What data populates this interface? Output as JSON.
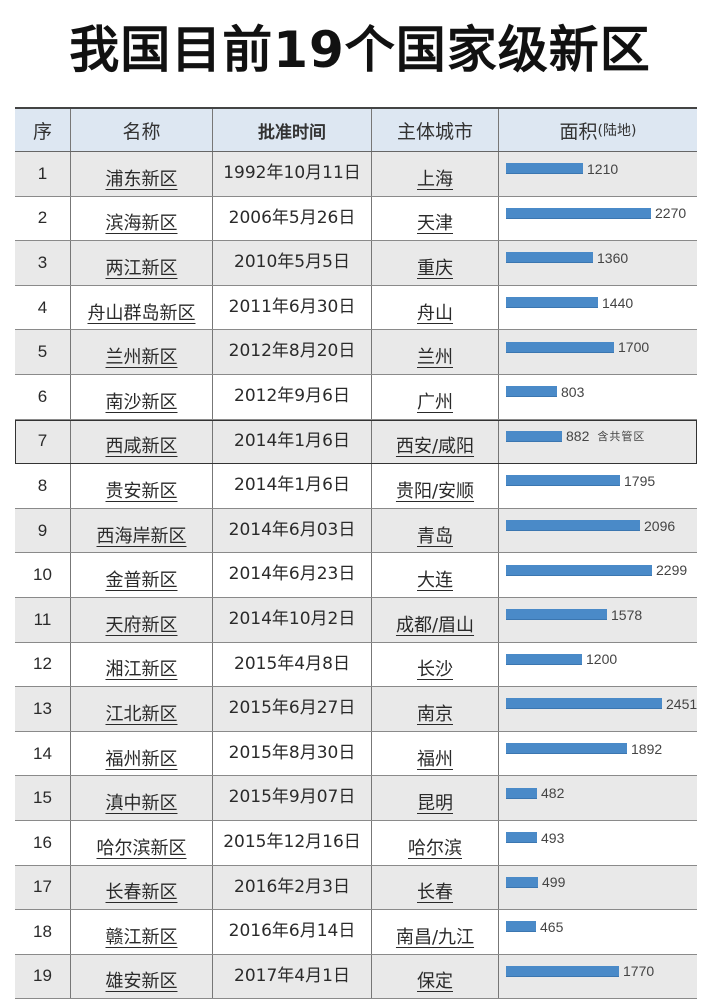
{
  "title": "我国目前19个国家级新区",
  "table": {
    "headers": {
      "index": "序",
      "name": "名称",
      "date": "批准时间",
      "city": "主体城市",
      "area": "面积",
      "area_unit": "(陆地)"
    },
    "bar_color": "#4a8ac8",
    "rows": [
      {
        "index": "1",
        "name": "浦东新区",
        "date": "1992年10月11日",
        "city": "上海",
        "area": "1210",
        "note": ""
      },
      {
        "index": "2",
        "name": "滨海新区",
        "date": "2006年5月26日",
        "city": "天津",
        "area": "2270",
        "note": ""
      },
      {
        "index": "3",
        "name": "两江新区",
        "date": "2010年5月5日",
        "city": "重庆",
        "area": "1360",
        "note": ""
      },
      {
        "index": "4",
        "name": "舟山群岛新区",
        "date": "2011年6月30日",
        "city": "舟山",
        "area": "1440",
        "note": ""
      },
      {
        "index": "5",
        "name": "兰州新区",
        "date": "2012年8月20日",
        "city": "兰州",
        "area": "1700",
        "note": ""
      },
      {
        "index": "6",
        "name": "南沙新区",
        "date": "2012年9月6日",
        "city": "广州",
        "area": "803",
        "note": ""
      },
      {
        "index": "7",
        "name": "西咸新区",
        "date": "2014年1月6日",
        "city": "西安/咸阳",
        "area": "882",
        "note": "含共管区"
      },
      {
        "index": "8",
        "name": "贵安新区",
        "date": "2014年1月6日",
        "city": "贵阳/安顺",
        "area": "1795",
        "note": ""
      },
      {
        "index": "9",
        "name": "西海岸新区",
        "date": "2014年6月03日",
        "city": "青岛",
        "area": "2096",
        "note": ""
      },
      {
        "index": "10",
        "name": "金普新区",
        "date": "2014年6月23日",
        "city": "大连",
        "area": "2299",
        "note": ""
      },
      {
        "index": "11",
        "name": "天府新区",
        "date": "2014年10月2日",
        "city": "成都/眉山",
        "area": "1578",
        "note": ""
      },
      {
        "index": "12",
        "name": "湘江新区",
        "date": "2015年4月8日",
        "city": "长沙",
        "area": "1200",
        "note": ""
      },
      {
        "index": "13",
        "name": "江北新区",
        "date": "2015年6月27日",
        "city": "南京",
        "area": "2451",
        "note": ""
      },
      {
        "index": "14",
        "name": "福州新区",
        "date": "2015年8月30日",
        "city": "福州",
        "area": "1892",
        "note": ""
      },
      {
        "index": "15",
        "name": "滇中新区",
        "date": "2015年9月07日",
        "city": "昆明",
        "area": "482",
        "note": ""
      },
      {
        "index": "16",
        "name": "哈尔滨新区",
        "date": "2015年12月16日",
        "city": "哈尔滨",
        "area": "493",
        "note": ""
      },
      {
        "index": "17",
        "name": "长春新区",
        "date": "2016年2月3日",
        "city": "长春",
        "area": "499",
        "note": ""
      },
      {
        "index": "18",
        "name": "赣江新区",
        "date": "2016年6月14日",
        "city": "南昌/九江",
        "area": "465",
        "note": ""
      },
      {
        "index": "19",
        "name": "雄安新区",
        "date": "2017年4月1日",
        "city": "保定",
        "area": "1770",
        "note": ""
      }
    ]
  }
}
